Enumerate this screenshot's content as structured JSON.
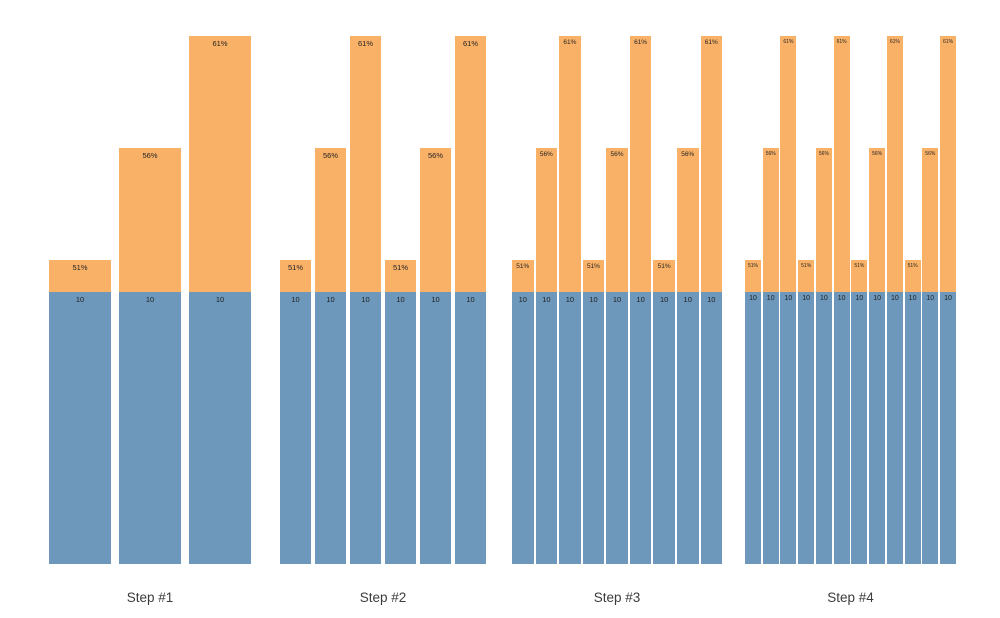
{
  "colors": {
    "background": "#ffffff",
    "base_segment": "#6d98bb",
    "top_segment": "#f9b168",
    "bar_label": "#1f1f1f",
    "axis_label": "#3c3c3c"
  },
  "chart_data": {
    "type": "bar",
    "variant": "stacked",
    "orientation": "vertical",
    "axes_visible": false,
    "grid": false,
    "legend": "none",
    "base_value": 10,
    "top_value_pattern_pct": [
      51,
      56,
      61
    ],
    "groups": [
      {
        "label": "Step #1",
        "bars": [
          {
            "top_label": "51%",
            "top_value": 51,
            "base_label": "10",
            "base_value": 10
          },
          {
            "top_label": "56%",
            "top_value": 56,
            "base_label": "10",
            "base_value": 10
          },
          {
            "top_label": "61%",
            "top_value": 61,
            "base_label": "10",
            "base_value": 10
          }
        ]
      },
      {
        "label": "Step #2",
        "bars": [
          {
            "top_label": "51%",
            "top_value": 51,
            "base_label": "10",
            "base_value": 10
          },
          {
            "top_label": "56%",
            "top_value": 56,
            "base_label": "10",
            "base_value": 10
          },
          {
            "top_label": "61%",
            "top_value": 61,
            "base_label": "10",
            "base_value": 10
          },
          {
            "top_label": "51%",
            "top_value": 51,
            "base_label": "10",
            "base_value": 10
          },
          {
            "top_label": "56%",
            "top_value": 56,
            "base_label": "10",
            "base_value": 10
          },
          {
            "top_label": "61%",
            "top_value": 61,
            "base_label": "10",
            "base_value": 10
          }
        ]
      },
      {
        "label": "Step #3",
        "bars": [
          {
            "top_label": "51%",
            "top_value": 51,
            "base_label": "10",
            "base_value": 10
          },
          {
            "top_label": "56%",
            "top_value": 56,
            "base_label": "10",
            "base_value": 10
          },
          {
            "top_label": "61%",
            "top_value": 61,
            "base_label": "10",
            "base_value": 10
          },
          {
            "top_label": "51%",
            "top_value": 51,
            "base_label": "10",
            "base_value": 10
          },
          {
            "top_label": "56%",
            "top_value": 56,
            "base_label": "10",
            "base_value": 10
          },
          {
            "top_label": "61%",
            "top_value": 61,
            "base_label": "10",
            "base_value": 10
          },
          {
            "top_label": "51%",
            "top_value": 51,
            "base_label": "10",
            "base_value": 10
          },
          {
            "top_label": "56%",
            "top_value": 56,
            "base_label": "10",
            "base_value": 10
          },
          {
            "top_label": "61%",
            "top_value": 61,
            "base_label": "10",
            "base_value": 10
          }
        ]
      },
      {
        "label": "Step #4",
        "bars": [
          {
            "top_label": "51%",
            "top_value": 51,
            "base_label": "10",
            "base_value": 10
          },
          {
            "top_label": "56%",
            "top_value": 56,
            "base_label": "10",
            "base_value": 10
          },
          {
            "top_label": "61%",
            "top_value": 61,
            "base_label": "10",
            "base_value": 10
          },
          {
            "top_label": "51%",
            "top_value": 51,
            "base_label": "10",
            "base_value": 10
          },
          {
            "top_label": "56%",
            "top_value": 56,
            "base_label": "10",
            "base_value": 10
          },
          {
            "top_label": "61%",
            "top_value": 61,
            "base_label": "10",
            "base_value": 10
          },
          {
            "top_label": "51%",
            "top_value": 51,
            "base_label": "10",
            "base_value": 10
          },
          {
            "top_label": "56%",
            "top_value": 56,
            "base_label": "10",
            "base_value": 10
          },
          {
            "top_label": "61%",
            "top_value": 61,
            "base_label": "10",
            "base_value": 10
          },
          {
            "top_label": "51%",
            "top_value": 51,
            "base_label": "10",
            "base_value": 10
          },
          {
            "top_label": "56%",
            "top_value": 56,
            "base_label": "10",
            "base_value": 10
          },
          {
            "top_label": "61%",
            "top_value": 61,
            "base_label": "10",
            "base_value": 10
          }
        ]
      }
    ]
  }
}
